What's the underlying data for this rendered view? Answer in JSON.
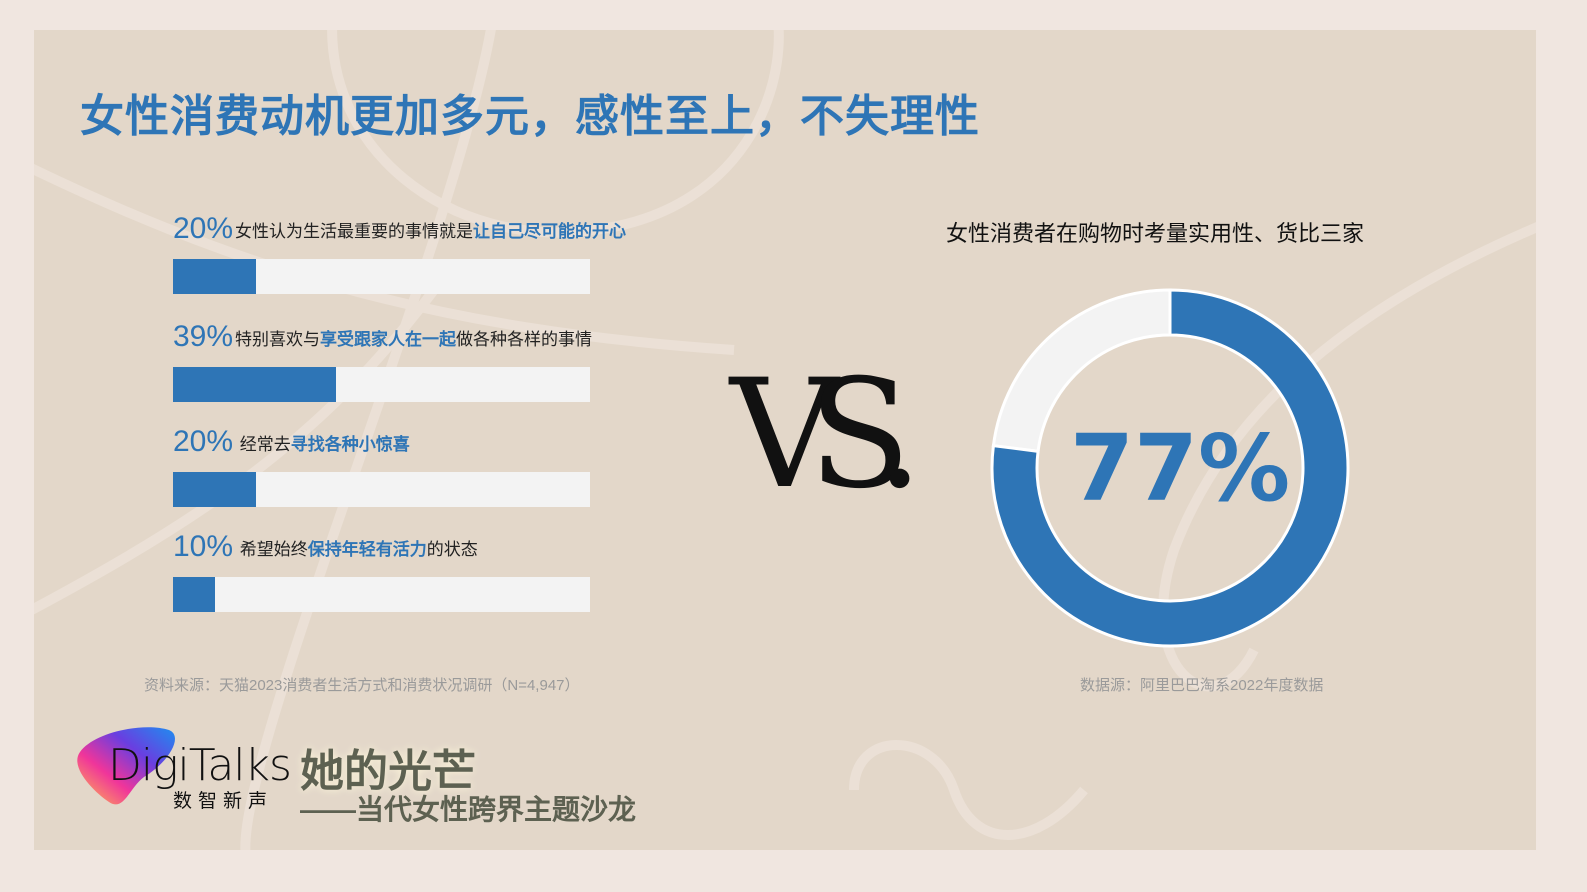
{
  "title": "女性消费动机更加多元，感性至上，不失理性",
  "chart_data": [
    {
      "type": "bar",
      "orientation": "horizontal",
      "xlim": [
        0,
        100
      ],
      "items": [
        {
          "value": 20,
          "pct_label": "20%",
          "text_before": "女性认为生活最重要的事情就是",
          "highlight": "让自己尽可能的开心",
          "text_after": ""
        },
        {
          "value": 39,
          "pct_label": "39%",
          "text_before": "特别喜欢与",
          "highlight": "享受跟家人在一起",
          "text_after": "做各种各样的事情"
        },
        {
          "value": 20,
          "pct_label": "20%",
          "text_before": " 经常去",
          "highlight": "寻找各种小惊喜",
          "text_after": ""
        },
        {
          "value": 10,
          "pct_label": "10%",
          "text_before": " 希望始终",
          "highlight": "保持年轻有活力",
          "text_after": "的状态"
        }
      ],
      "source": "资料来源：天猫2023消费者生活方式和消费状况调研（N=4,947）",
      "colors": {
        "fill": "#2e75b6",
        "track": "#f3f3f3"
      }
    },
    {
      "type": "pie",
      "donut": true,
      "title": "女性消费者在购物时考量实用性、货比三家",
      "value": 77,
      "center_label": "77%",
      "source": "数据源：阿里巴巴淘系2022年度数据",
      "colors": {
        "fill": "#2e75b6",
        "rest": "#f3f3f3"
      }
    }
  ],
  "vs_label": "VS.",
  "logo": {
    "name": "DigiTalks",
    "subtitle": "数智新声"
  },
  "event": {
    "title": "她的光芒",
    "subtitle": "——当代女性跨界主题沙龙"
  }
}
